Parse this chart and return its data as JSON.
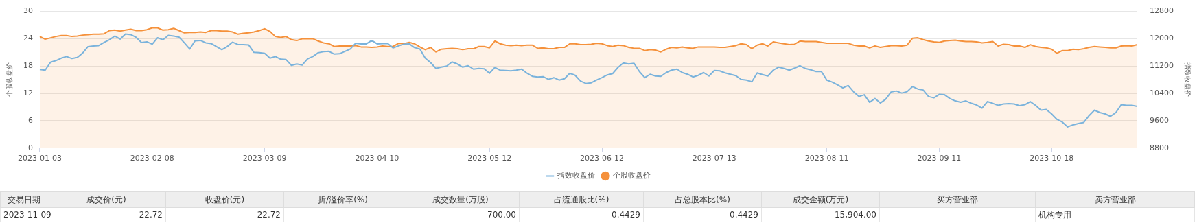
{
  "chart_data": {
    "type": "line",
    "ylabel": "个股收盘价",
    "y2label": "指数收盘价",
    "categories": [
      "2023-01-03",
      null,
      null,
      null,
      null,
      null,
      null,
      null,
      null,
      null,
      null,
      null,
      null,
      null,
      null,
      null,
      null,
      null,
      null,
      null,
      null,
      "2023-02-08",
      null,
      null,
      null,
      null,
      null,
      null,
      null,
      null,
      null,
      null,
      null,
      null,
      null,
      null,
      null,
      null,
      null,
      null,
      null,
      null,
      "2023-03-09",
      null,
      null,
      null,
      null,
      null,
      null,
      null,
      null,
      null,
      null,
      null,
      null,
      null,
      null,
      null,
      null,
      null,
      null,
      null,
      null,
      "2023-04-10",
      null,
      null,
      null,
      null,
      null,
      null,
      null,
      null,
      null,
      null,
      null,
      null,
      null,
      null,
      null,
      null,
      null,
      null,
      null,
      null,
      "2023-05-12",
      null,
      null,
      null,
      null,
      null,
      null,
      null,
      null,
      null,
      null,
      null,
      null,
      null,
      null,
      null,
      null,
      null,
      null,
      null,
      null,
      "2023-06-12",
      null,
      null,
      null,
      null,
      null,
      null,
      null,
      null,
      null,
      null,
      null,
      null,
      null,
      null,
      null,
      null,
      null,
      null,
      null,
      null,
      "2023-07-13",
      null,
      null,
      null,
      null,
      null,
      null,
      null,
      null,
      null,
      null,
      null,
      null,
      null,
      null,
      null,
      null,
      null,
      null,
      null,
      null,
      "2023-08-11",
      null,
      null,
      null,
      null,
      null,
      null,
      null,
      null,
      null,
      null,
      null,
      null,
      null,
      null,
      null,
      null,
      null,
      null,
      null,
      null,
      "2023-09-11",
      null,
      null,
      null,
      null,
      null,
      null,
      null,
      null,
      null,
      null,
      null,
      null,
      null,
      null,
      null,
      null,
      null,
      null,
      null,
      null,
      "2023-10-18",
      null,
      null,
      null,
      null,
      null,
      null,
      null,
      null,
      null,
      null,
      null,
      null,
      null,
      null,
      null,
      null
    ],
    "series": [
      {
        "name": "指数收盘价",
        "type": "line",
        "axis": "y2",
        "color": "#7ab3dc",
        "values": [
          11100,
          11080,
          11310,
          11360,
          11430,
          11480,
          11420,
          11450,
          11580,
          11770,
          11790,
          11800,
          11890,
          11970,
          12080,
          11990,
          12140,
          12120,
          12040,
          11890,
          11910,
          11840,
          12030,
          11970,
          12100,
          12080,
          12050,
          11880,
          11700,
          11940,
          11950,
          11880,
          11860,
          11770,
          11680,
          11770,
          11900,
          11830,
          11830,
          11820,
          11600,
          11590,
          11570,
          11430,
          11480,
          11400,
          11390,
          11220,
          11260,
          11230,
          11410,
          11480,
          11590,
          11620,
          11630,
          11550,
          11560,
          11630,
          11700,
          11870,
          11850,
          11850,
          11950,
          11850,
          11860,
          11860,
          11730,
          11790,
          11840,
          11850,
          11740,
          11700,
          11430,
          11300,
          11130,
          11170,
          11200,
          11320,
          11260,
          11170,
          11210,
          11110,
          11130,
          11120,
          10990,
          11160,
          11080,
          11070,
          11060,
          11080,
          11110,
          10990,
          10900,
          10880,
          10890,
          10810,
          10860,
          10790,
          10830,
          10990,
          10930,
          10760,
          10690,
          10710,
          10790,
          10860,
          10940,
          10980,
          11160,
          11290,
          11260,
          11280,
          11040,
          10860,
          10960,
          10910,
          10900,
          11010,
          11080,
          11110,
          11010,
          10960,
          10880,
          10930,
          11010,
          10910,
          11070,
          11060,
          11000,
          10960,
          10920,
          10810,
          10790,
          10740,
          11000,
          10950,
          10910,
          11080,
          11170,
          11130,
          11080,
          11140,
          11210,
          11130,
          11090,
          11040,
          11040,
          10790,
          10730,
          10650,
          10560,
          10630,
          10450,
          10310,
          10360,
          10140,
          10250,
          10120,
          10230,
          10440,
          10470,
          10410,
          10450,
          10600,
          10530,
          10500,
          10310,
          10270,
          10370,
          10360,
          10250,
          10180,
          10140,
          10180,
          10110,
          10060,
          9970,
          10160,
          10110,
          10050,
          10090,
          10100,
          10090,
          10040,
          10070,
          10160,
          10050,
          9910,
          9930,
          9800,
          9640,
          9560,
          9420,
          9480,
          9520,
          9550,
          9750,
          9910,
          9840,
          9800,
          9730,
          9840,
          10070,
          10050,
          10050,
          10020
        ]
      },
      {
        "name": "个股收盘价",
        "type": "area",
        "color": "#f5913b",
        "values": [
          24.5,
          23.9,
          24.2,
          24.5,
          24.7,
          24.7,
          24.5,
          24.6,
          24.8,
          24.9,
          25.0,
          25.0,
          25.1,
          25.8,
          25.9,
          25.7,
          25.9,
          26.1,
          25.8,
          25.8,
          26.0,
          26.4,
          26.4,
          25.9,
          26.0,
          26.3,
          25.8,
          25.3,
          25.4,
          25.4,
          25.5,
          25.4,
          25.8,
          25.8,
          25.7,
          25.7,
          25.5,
          25.0,
          25.2,
          25.3,
          25.5,
          25.8,
          26.2,
          25.6,
          24.5,
          24.3,
          24.5,
          23.8,
          23.6,
          24.0,
          24.0,
          24.0,
          23.5,
          23.1,
          22.9,
          22.3,
          22.4,
          22.4,
          22.4,
          22.5,
          22.2,
          22.2,
          22.1,
          22.2,
          22.4,
          22.3,
          22.3,
          23.0,
          22.9,
          23.2,
          22.9,
          22.2,
          21.6,
          22.1,
          21.1,
          21.7,
          21.8,
          21.9,
          21.8,
          21.6,
          21.8,
          21.8,
          22.3,
          22.3,
          22.0,
          23.5,
          22.9,
          22.6,
          22.5,
          22.6,
          22.5,
          22.6,
          22.6,
          21.9,
          22.0,
          21.8,
          21.8,
          22.1,
          22.1,
          22.9,
          22.9,
          22.7,
          22.7,
          22.8,
          23.0,
          22.9,
          22.5,
          22.3,
          22.6,
          22.5,
          22.1,
          21.9,
          21.9,
          21.4,
          21.6,
          21.5,
          21.1,
          21.7,
          22.1,
          22.0,
          22.2,
          22.0,
          21.9,
          22.2,
          22.2,
          22.2,
          22.2,
          22.1,
          22.1,
          22.3,
          22.5,
          22.9,
          22.7,
          21.8,
          22.6,
          22.9,
          22.4,
          23.3,
          23.1,
          22.9,
          22.7,
          22.8,
          23.5,
          23.4,
          23.4,
          23.4,
          23.2,
          23.0,
          23.0,
          23.0,
          23.0,
          23.0,
          22.6,
          22.4,
          22.4,
          22.0,
          22.4,
          22.1,
          22.3,
          22.5,
          22.5,
          22.4,
          22.6,
          24.1,
          24.2,
          23.8,
          23.5,
          23.3,
          23.2,
          23.5,
          23.6,
          23.7,
          23.5,
          23.4,
          23.4,
          23.3,
          23.1,
          23.2,
          23.4,
          22.4,
          22.8,
          22.7,
          22.4,
          22.4,
          22.1,
          22.7,
          22.3,
          22.1,
          22.0,
          21.7,
          20.8,
          21.4,
          21.4,
          21.7,
          21.6,
          21.8,
          22.1,
          22.3,
          22.2,
          22.1,
          22.0,
          22.0,
          22.4,
          22.5,
          22.4,
          22.7
        ]
      }
    ],
    "ylim": [
      0,
      30
    ],
    "yticks": [
      0,
      6,
      12,
      18,
      24,
      30
    ],
    "y2lim": [
      8800,
      12800
    ],
    "y2ticks": [
      8800,
      9600,
      10400,
      11200,
      12000,
      12800
    ],
    "grid": "y",
    "legend": "bottom",
    "marker": "none",
    "annotations": [
      "交易日期",
      "成交价(元)",
      "收盘价(元)",
      "折/溢价率(%)",
      "成交数量(万股)",
      "占流通股比(%)",
      "占总股本比(%)",
      "成交金额(万元)",
      "买方营业部",
      "卖方营业部",
      "2023-11-09",
      "22.72",
      "22.72",
      "-",
      "700.00",
      "0.4429",
      "0.4429",
      "15,904.00",
      null,
      "机构专用"
    ]
  }
}
